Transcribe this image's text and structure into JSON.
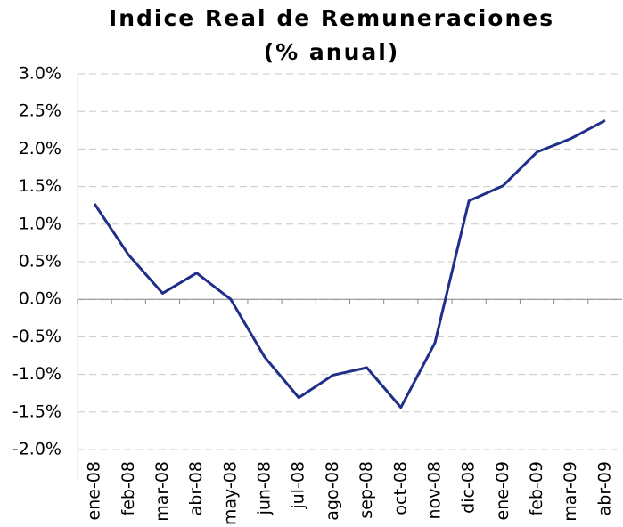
{
  "chart_data": {
    "type": "line",
    "title": "Indice Real de Remuneraciones",
    "subtitle": "(% anual)",
    "categories": [
      "ene-08",
      "feb-08",
      "mar-08",
      "abr-08",
      "may-08",
      "jun-08",
      "jul-08",
      "ago-08",
      "sep-08",
      "oct-08",
      "nov-08",
      "dic-08",
      "ene-09",
      "feb-09",
      "mar-09",
      "abr-09"
    ],
    "series": [
      {
        "color": "#1f2f8a",
        "values": [
          1.27,
          0.59,
          0.08,
          0.35,
          0.0,
          -0.77,
          -1.31,
          -1.01,
          -0.91,
          -1.44,
          -0.58,
          1.31,
          1.51,
          1.96,
          2.14,
          2.38
        ]
      }
    ],
    "ylim": [
      -2,
      3
    ],
    "yticks": [
      {
        "value": -2,
        "label": "-2.0%"
      },
      {
        "value": -1.5,
        "label": "-1.5%"
      },
      {
        "value": -1,
        "label": "-1.0%"
      },
      {
        "value": -0.5,
        "label": "-0.5%"
      },
      {
        "value": 0,
        "label": "0.0%"
      },
      {
        "value": 0.5,
        "label": "0.5%"
      },
      {
        "value": 1,
        "label": "1.0%"
      },
      {
        "value": 1.5,
        "label": "1.5%"
      },
      {
        "value": 2,
        "label": "2.0%"
      },
      {
        "value": 2.5,
        "label": "2.5%"
      },
      {
        "value": 3,
        "label": "3.0%"
      }
    ],
    "grid": true
  }
}
